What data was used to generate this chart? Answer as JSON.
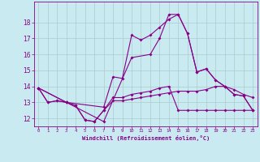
{
  "background_color": "#c8eaf0",
  "grid_color": "#aacccc",
  "line_color": "#880088",
  "xlabel": "Windchill (Refroidissement éolien,°C)",
  "xlim": [
    -0.5,
    23.5
  ],
  "ylim": [
    11.5,
    19.3
  ],
  "yticks": [
    12,
    13,
    14,
    15,
    16,
    17,
    18
  ],
  "xticks": [
    0,
    1,
    2,
    3,
    4,
    5,
    6,
    7,
    8,
    9,
    10,
    11,
    12,
    13,
    14,
    15,
    16,
    17,
    18,
    19,
    20,
    21,
    22,
    23
  ],
  "line1_x": [
    0,
    1,
    2,
    3,
    4,
    5,
    6,
    7,
    8,
    9,
    10,
    11,
    12,
    13,
    14,
    15,
    16,
    17,
    18,
    19,
    20,
    21,
    22,
    23
  ],
  "line1_y": [
    13.9,
    13.0,
    13.1,
    13.0,
    12.8,
    11.9,
    11.8,
    12.5,
    13.1,
    13.1,
    13.2,
    13.3,
    13.4,
    13.5,
    13.6,
    13.7,
    13.7,
    13.7,
    13.8,
    14.0,
    14.0,
    13.8,
    13.5,
    13.3
  ],
  "line2_x": [
    0,
    1,
    2,
    3,
    4,
    5,
    6,
    7,
    8,
    9,
    10,
    11,
    12,
    13,
    14,
    15,
    16,
    17,
    18,
    19,
    20,
    21,
    22,
    23
  ],
  "line2_y": [
    13.9,
    13.0,
    13.1,
    13.0,
    12.8,
    11.9,
    11.8,
    12.5,
    13.3,
    13.3,
    13.5,
    13.6,
    13.7,
    13.9,
    14.0,
    12.5,
    12.5,
    12.5,
    12.5,
    12.5,
    12.5,
    12.5,
    12.5,
    12.5
  ],
  "line3_x": [
    0,
    3,
    7,
    8,
    9,
    10,
    11,
    12,
    13,
    14,
    15,
    16,
    17,
    18,
    19,
    20,
    21,
    22,
    23
  ],
  "line3_y": [
    13.9,
    13.0,
    12.7,
    14.6,
    14.5,
    17.2,
    16.9,
    17.2,
    17.7,
    18.2,
    18.5,
    17.3,
    14.9,
    15.1,
    14.4,
    14.0,
    13.5,
    13.4,
    12.5
  ],
  "line4_x": [
    0,
    3,
    7,
    10,
    12,
    13,
    14,
    15,
    16,
    17,
    18,
    19,
    20,
    21,
    22,
    23
  ],
  "line4_y": [
    13.9,
    13.0,
    11.8,
    15.8,
    16.0,
    17.0,
    18.5,
    18.5,
    17.3,
    14.9,
    15.1,
    14.4,
    14.0,
    13.5,
    13.4,
    12.5
  ]
}
